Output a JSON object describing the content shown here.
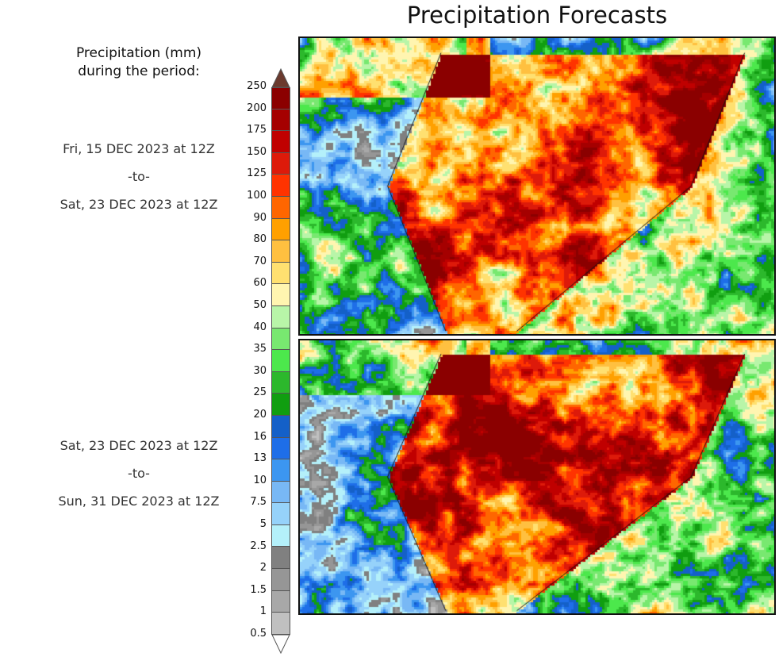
{
  "title": "Precipitation Forecasts",
  "legend": {
    "title_line1": "Precipitation (mm)",
    "title_line2": "during the period:",
    "over_color": "#6b3a2e",
    "under_color": "#ffffff",
    "levels": [
      "250",
      "200",
      "175",
      "150",
      "125",
      "100",
      "90",
      "80",
      "70",
      "60",
      "50",
      "40",
      "35",
      "30",
      "25",
      "20",
      "16",
      "13",
      "10",
      "7.5",
      "5",
      "2.5",
      "2",
      "1.5",
      "1",
      "0.5"
    ],
    "colors": [
      "#8b0000",
      "#a50000",
      "#c00000",
      "#dd1a0a",
      "#ff3300",
      "#ff6600",
      "#ffa000",
      "#ffc040",
      "#ffe070",
      "#fff5b0",
      "#b8f5a8",
      "#78e870",
      "#4ce84c",
      "#2cb82c",
      "#109e10",
      "#1460c8",
      "#1e6ee8",
      "#3c96f0",
      "#78b8f5",
      "#96d2fa",
      "#b4f0fa",
      "#808080",
      "#969696",
      "#a8a8a8",
      "#c0c0c0"
    ]
  },
  "periods": [
    {
      "start": "Fri, 15 DEC 2023 at 12Z",
      "sep": "-to-",
      "end": "Sat, 23 DEC 2023 at 12Z"
    },
    {
      "start": "Sat, 23 DEC 2023 at 12Z",
      "sep": "-to-",
      "end": "Sun, 31 DEC 2023 at 12Z"
    }
  ]
}
